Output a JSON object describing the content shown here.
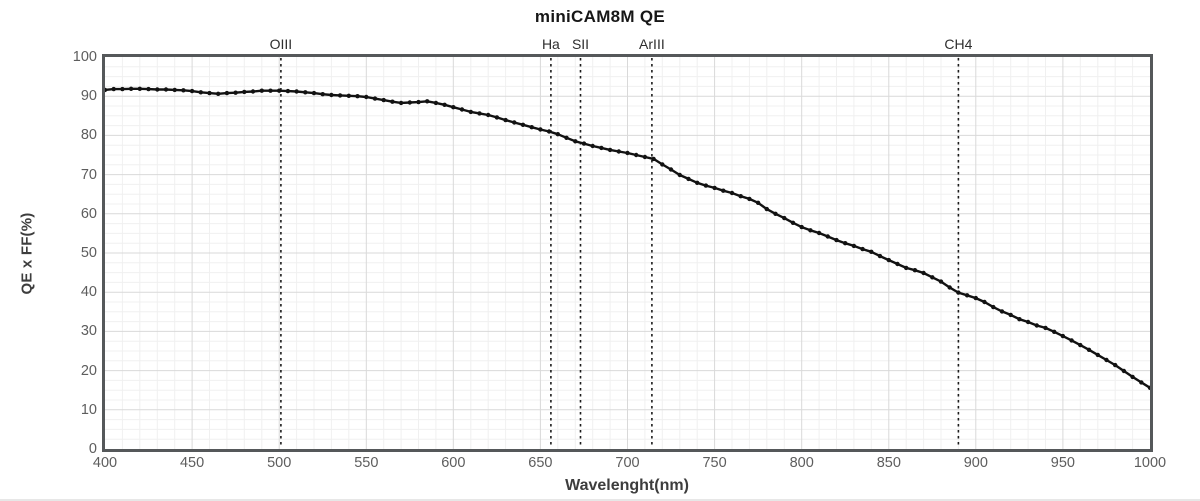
{
  "figure": {
    "title": "miniCAM8M QE",
    "x_axis_label": "Wavelenght(nm)",
    "y_axis_label": "QE x FF(%)"
  },
  "chart_data": {
    "type": "line",
    "title": "miniCAM8M QE",
    "xlabel": "Wavelenght(nm)",
    "ylabel": "QE x FF(%)",
    "xlim": [
      400,
      1000
    ],
    "ylim": [
      0,
      100
    ],
    "x_ticks": [
      400,
      450,
      500,
      550,
      600,
      650,
      700,
      750,
      800,
      850,
      900,
      950,
      1000
    ],
    "y_ticks": [
      0,
      10,
      20,
      30,
      40,
      50,
      60,
      70,
      80,
      90,
      100
    ],
    "grid": {
      "major": true,
      "minor": true,
      "x_minor_step": 10,
      "y_minor_step": 2.5,
      "legend": "none"
    },
    "markers": [
      {
        "label": "OIII",
        "wavelength": 501
      },
      {
        "label": "Ha",
        "wavelength": 656
      },
      {
        "label": "SII",
        "wavelength": 673
      },
      {
        "label": "ArIII",
        "wavelength": 714
      },
      {
        "label": "CH4",
        "wavelength": 890
      }
    ],
    "series": [
      {
        "name": "QE x FF",
        "x": [
          400,
          405,
          410,
          415,
          420,
          425,
          430,
          435,
          440,
          445,
          450,
          455,
          460,
          465,
          470,
          475,
          480,
          485,
          490,
          495,
          500,
          505,
          510,
          515,
          520,
          525,
          530,
          535,
          540,
          545,
          550,
          555,
          560,
          565,
          570,
          575,
          580,
          585,
          590,
          595,
          600,
          605,
          610,
          615,
          620,
          625,
          630,
          635,
          640,
          645,
          650,
          655,
          660,
          665,
          670,
          675,
          680,
          685,
          690,
          695,
          700,
          705,
          710,
          715,
          720,
          725,
          730,
          735,
          740,
          745,
          750,
          755,
          760,
          765,
          770,
          775,
          780,
          785,
          790,
          795,
          800,
          805,
          810,
          815,
          820,
          825,
          830,
          835,
          840,
          845,
          850,
          855,
          860,
          865,
          870,
          875,
          880,
          885,
          890,
          895,
          900,
          905,
          910,
          915,
          920,
          925,
          930,
          935,
          940,
          945,
          950,
          955,
          960,
          965,
          970,
          975,
          980,
          985,
          990,
          995,
          1000
        ],
        "y": [
          91.6,
          91.8,
          91.8,
          91.9,
          91.9,
          91.8,
          91.7,
          91.7,
          91.6,
          91.5,
          91.3,
          91.0,
          90.8,
          90.6,
          90.8,
          90.9,
          91.1,
          91.2,
          91.4,
          91.4,
          91.4,
          91.3,
          91.2,
          91.0,
          90.8,
          90.5,
          90.3,
          90.2,
          90.1,
          90.0,
          89.8,
          89.4,
          89.0,
          88.6,
          88.3,
          88.4,
          88.5,
          88.7,
          88.3,
          87.8,
          87.2,
          86.6,
          86.0,
          85.6,
          85.2,
          84.6,
          83.9,
          83.3,
          82.7,
          82.1,
          81.5,
          81.0,
          80.3,
          79.4,
          78.5,
          77.9,
          77.3,
          76.8,
          76.3,
          75.9,
          75.5,
          75.0,
          74.5,
          74.0,
          72.6,
          71.3,
          69.9,
          68.9,
          67.9,
          67.2,
          66.6,
          65.9,
          65.3,
          64.5,
          63.8,
          62.8,
          61.2,
          60.0,
          58.9,
          57.7,
          56.6,
          55.8,
          55.1,
          54.2,
          53.3,
          52.5,
          51.8,
          51.0,
          50.3,
          49.2,
          48.2,
          47.2,
          46.2,
          45.6,
          44.9,
          43.8,
          42.7,
          41.2,
          39.9,
          39.2,
          38.5,
          37.5,
          36.2,
          35.1,
          34.2,
          33.1,
          32.4,
          31.5,
          30.9,
          29.9,
          28.8,
          27.7,
          26.5,
          25.3,
          24.0,
          22.7,
          21.4,
          19.9,
          18.4,
          17.0,
          15.6
        ]
      }
    ]
  },
  "colors": {
    "background": "#ffffff",
    "plot_border": "#55585a",
    "grid_major": "#d9d9d9",
    "grid_minor": "#f0f0f0",
    "curve": "#121212",
    "marker_line": "#1c1c1c",
    "tick_text": "#5d5d5d",
    "axis_title_text": "#3d3d3d",
    "title_text": "#171717"
  }
}
